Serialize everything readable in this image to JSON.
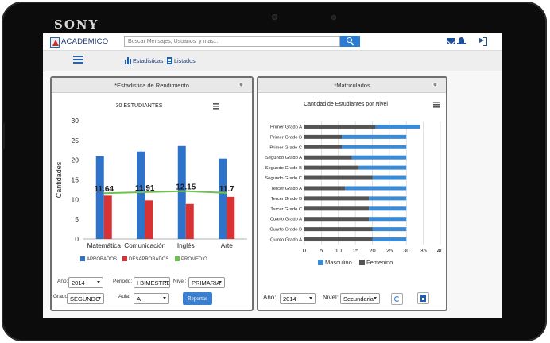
{
  "device": {
    "brand": "SONY"
  },
  "app": {
    "name": "ACADEMICO",
    "search_placeholder": "Buscar Mensajes, Usuarios  y mas...",
    "colors": {
      "accent": "#2a7bd3",
      "brand_blue": "#1f3f7a",
      "approved": "#2e73c9",
      "failed": "#d93234",
      "average": "#6cc24a",
      "male": "#3a8ad6",
      "female": "#545454"
    }
  },
  "nav": {
    "items": [
      {
        "label": "Estadisticas",
        "icon": "bar-chart-icon"
      },
      {
        "label": "Listados",
        "icon": "list-icon"
      }
    ]
  },
  "left_panel": {
    "title": "*Estadistica de Rendimiento",
    "chart_title": "30 ESTUDIANTES",
    "controls": {
      "anio_label": "Año:",
      "anio_value": "2014",
      "periodo_label": "Periodo:",
      "periodo_value": "I BIMESTRE",
      "nivel_label": "Nivel:",
      "nivel_value": "PRIMARIA",
      "grado_label": "Grado:",
      "grado_value": "SEGUNDO",
      "aula_label": "Aula:",
      "aula_value": "A",
      "report_button": "Reportar"
    }
  },
  "right_panel": {
    "title": "*Matriculados",
    "chart_title": "Cantidad de Estudiantes por Nivel",
    "controls": {
      "anio_label": "Año:",
      "anio_value": "2014",
      "nivel_label": "Nivel:",
      "nivel_value": "Secundaria"
    }
  },
  "chart_data": [
    {
      "type": "bar",
      "title": "30 ESTUDIANTES",
      "ylabel": "Cantidades",
      "ylim": [
        0,
        30
      ],
      "yticks": [
        0,
        5,
        10,
        15,
        20,
        25,
        30
      ],
      "categories": [
        "Matemática",
        "Comunicación",
        "Inglés",
        "Arte"
      ],
      "series": [
        {
          "name": "APROBADOS",
          "type": "bar",
          "values": [
            21,
            22.2,
            23.6,
            20.4
          ]
        },
        {
          "name": "DESAPROBADOS",
          "type": "bar",
          "values": [
            11,
            9.8,
            8.9,
            10.7
          ]
        },
        {
          "name": "PROMEDIO",
          "type": "line",
          "values": [
            11.64,
            11.91,
            12.15,
            11.7
          ],
          "labels": [
            "11.64",
            "11.91",
            "12.15",
            "11.7"
          ]
        }
      ],
      "legend": "bottom",
      "grid": false
    },
    {
      "type": "bar",
      "orientation": "horizontal",
      "stacked": true,
      "title": "Cantidad de Estudiantes por Nivel",
      "xlim": [
        0,
        40
      ],
      "xticks": [
        0,
        5,
        10,
        15,
        20,
        25,
        30,
        35,
        40
      ],
      "categories": [
        "Primer Grado A",
        "Primer Grado B",
        "Primer Grado C",
        "Segundo Grado A",
        "Segundo Grado B",
        "Segundo Grado C",
        "Tercer Grado A",
        "Tercer Grado B",
        "Tercer Grado C",
        "Cuarto Grado A",
        "Cuarto Grado B",
        "Quinto  Grado A"
      ],
      "series": [
        {
          "name": "Femenino",
          "values": [
            21,
            11,
            11,
            14,
            16,
            20,
            12,
            19,
            19,
            19,
            20,
            20
          ]
        },
        {
          "name": "Masculino",
          "values": [
            13,
            19,
            19,
            16,
            14,
            10,
            18,
            11,
            11,
            11,
            10,
            10
          ]
        }
      ],
      "legend_order": [
        "Masculino",
        "Femenino"
      ],
      "legend": "bottom",
      "grid": true
    }
  ]
}
